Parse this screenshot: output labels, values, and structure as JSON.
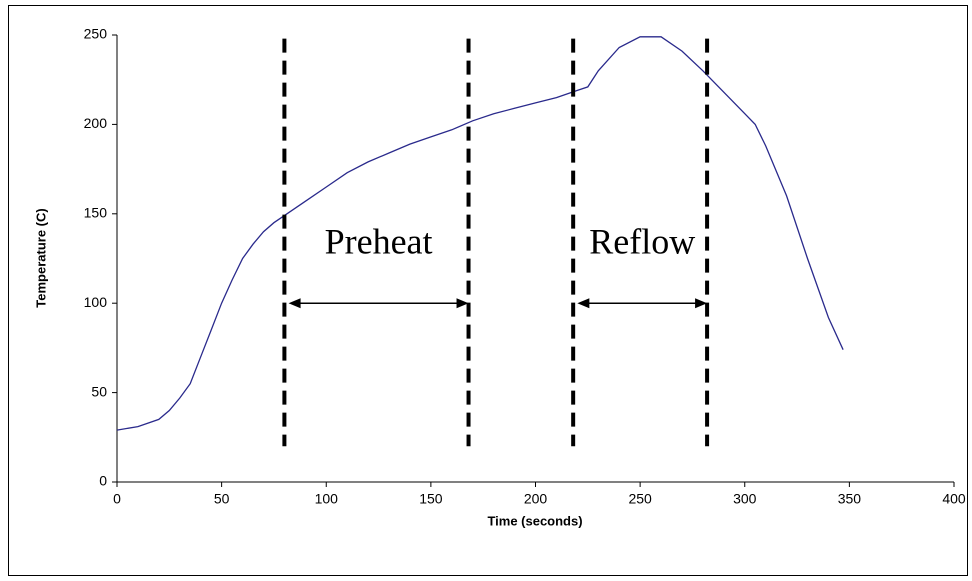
{
  "chart_data": {
    "type": "line",
    "x_label": "Time (seconds)",
    "y_label": "Temperature (C)",
    "x": [
      0,
      10,
      20,
      25,
      30,
      35,
      40,
      45,
      50,
      55,
      60,
      65,
      70,
      75,
      80,
      90,
      100,
      110,
      120,
      130,
      140,
      150,
      160,
      170,
      180,
      190,
      200,
      210,
      220,
      225,
      230,
      240,
      250,
      260,
      270,
      280,
      290,
      300,
      305,
      310,
      320,
      330,
      340,
      347
    ],
    "values": [
      29,
      31,
      35,
      40,
      47,
      55,
      70,
      85,
      100,
      113,
      125,
      133,
      140,
      145,
      149,
      157,
      165,
      173,
      179,
      184,
      189,
      193,
      197,
      202,
      206,
      209,
      212,
      215,
      219,
      221,
      230,
      243,
      249,
      249,
      241,
      230,
      218,
      206,
      200,
      188,
      160,
      125,
      92,
      74
    ],
    "color": "#2a2a8c",
    "xlim": [
      0,
      400
    ],
    "xticks": [
      0,
      50,
      100,
      150,
      200,
      250,
      300,
      350,
      400
    ],
    "ylim": [
      0,
      250
    ],
    "yticks": [
      0,
      50,
      100,
      150,
      200,
      250
    ],
    "grid": false,
    "vlines": [
      80,
      168,
      218,
      282
    ],
    "vline_range": [
      20,
      248
    ],
    "annotations": [
      {
        "text": "Preheat",
        "x": [
          82,
          168
        ],
        "y": 100
      },
      {
        "text": "Reflow",
        "x": [
          220,
          282
        ],
        "y": 100
      }
    ]
  }
}
